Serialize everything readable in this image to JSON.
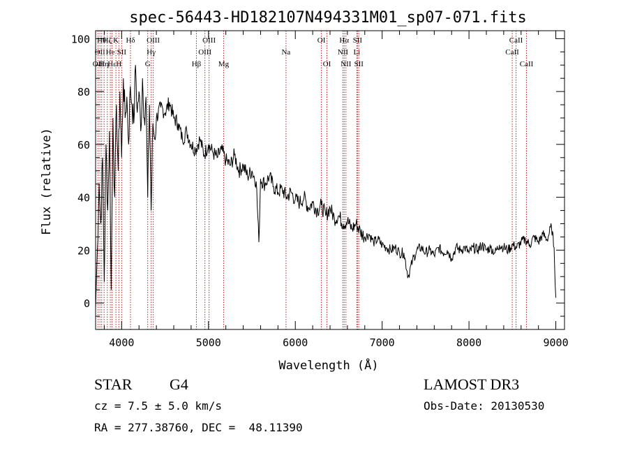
{
  "chart_data": {
    "type": "line",
    "title": "spec-56443-HD182107N494331M01_sp07-071.fits",
    "xlabel": "Wavelength (Å)",
    "ylabel": "Flux (relative)",
    "xlim": [
      3700,
      9100
    ],
    "ylim": [
      -10,
      103
    ],
    "xticks": [
      4000,
      5000,
      6000,
      7000,
      8000,
      9000
    ],
    "yticks": [
      0,
      20,
      40,
      60,
      80,
      100
    ],
    "xtick_labels": [
      "4000",
      "5000",
      "6000",
      "7000",
      "8000",
      "9000"
    ],
    "ytick_labels": [
      "0",
      "20",
      "40",
      "60",
      "80",
      "100"
    ],
    "grid": false,
    "series": [
      {
        "name": "flux",
        "x": [
          3700,
          3720,
          3740,
          3760,
          3780,
          3800,
          3820,
          3840,
          3860,
          3880,
          3900,
          3920,
          3940,
          3960,
          3980,
          4000,
          4020,
          4040,
          4060,
          4080,
          4100,
          4120,
          4140,
          4160,
          4180,
          4200,
          4220,
          4240,
          4260,
          4280,
          4300,
          4320,
          4340,
          4360,
          4380,
          4400,
          4450,
          4500,
          4550,
          4600,
          4650,
          4700,
          4750,
          4800,
          4850,
          4900,
          4950,
          5000,
          5050,
          5100,
          5150,
          5200,
          5250,
          5300,
          5350,
          5400,
          5450,
          5500,
          5550,
          5580,
          5600,
          5650,
          5700,
          5750,
          5800,
          5850,
          5900,
          5950,
          6000,
          6050,
          6100,
          6150,
          6200,
          6250,
          6300,
          6350,
          6400,
          6450,
          6500,
          6550,
          6600,
          6650,
          6700,
          6750,
          6800,
          6850,
          6900,
          6950,
          7000,
          7050,
          7100,
          7150,
          7200,
          7250,
          7300,
          7350,
          7400,
          7450,
          7500,
          7550,
          7600,
          7650,
          7700,
          7750,
          7800,
          7850,
          7900,
          7950,
          8000,
          8050,
          8100,
          8150,
          8200,
          8250,
          8300,
          8350,
          8400,
          8450,
          8500,
          8550,
          8600,
          8650,
          8700,
          8750,
          8800,
          8850,
          8900,
          8950,
          8980,
          9000
        ],
        "y": [
          -2,
          20,
          45,
          30,
          55,
          8,
          60,
          35,
          65,
          5,
          70,
          40,
          75,
          50,
          80,
          55,
          85,
          70,
          78,
          60,
          82,
          75,
          68,
          90,
          72,
          80,
          65,
          85,
          70,
          78,
          40,
          75,
          35,
          68,
          62,
          70,
          74,
          72,
          76,
          70,
          68,
          62,
          65,
          60,
          58,
          62,
          56,
          60,
          57,
          55,
          58,
          54,
          52,
          56,
          50,
          52,
          48,
          50,
          46,
          23,
          47,
          45,
          48,
          44,
          42,
          43,
          40,
          42,
          39,
          38,
          40,
          36,
          38,
          35,
          37,
          33,
          36,
          32,
          33,
          30,
          31,
          28,
          30,
          27,
          25,
          26,
          23,
          24,
          22,
          21,
          20,
          21,
          19,
          19,
          10,
          16,
          20,
          21,
          19,
          20,
          18,
          21,
          19,
          20,
          17,
          21,
          20,
          21,
          19,
          21,
          20,
          22,
          20,
          21,
          19,
          22,
          21,
          20,
          22,
          21,
          23,
          24,
          22,
          25,
          23,
          26,
          24,
          29,
          21,
          2
        ]
      }
    ],
    "lines": [
      {
        "wl": 3727,
        "label": "OII",
        "row": 3
      },
      {
        "wl": 3750,
        "label": "OII",
        "row": 2
      },
      {
        "wl": 3770,
        "label": "Hθ",
        "row": 1
      },
      {
        "wl": 3798,
        "label": "Hη",
        "row": 3
      },
      {
        "wl": 3835,
        "label": "Hζ",
        "row": 1
      },
      {
        "wl": 3869,
        "label": "He",
        "row": 2
      },
      {
        "wl": 3889,
        "label": "Hε",
        "row": 3
      },
      {
        "wl": 3934,
        "label": "K",
        "row": 1
      },
      {
        "wl": 3968,
        "label": "H",
        "row": 3
      },
      {
        "wl": 4000,
        "label": "SII",
        "row": 2
      },
      {
        "wl": 4102,
        "label": "Hδ",
        "row": 1
      },
      {
        "wl": 4300,
        "label": "G",
        "row": 3
      },
      {
        "wl": 4340,
        "label": "Hγ",
        "row": 2
      },
      {
        "wl": 4364,
        "label": "OIII",
        "row": 1
      },
      {
        "wl": 4861,
        "label": "Hβ",
        "row": 3
      },
      {
        "wl": 4959,
        "label": "OIII",
        "row": 2
      },
      {
        "wl": 5007,
        "label": "OIII",
        "row": 1
      },
      {
        "wl": 5175,
        "label": "Mg",
        "row": 3
      },
      {
        "wl": 5893,
        "label": "Na",
        "row": 2
      },
      {
        "wl": 6300,
        "label": "OI",
        "row": 1
      },
      {
        "wl": 6364,
        "label": "OI",
        "row": 3
      },
      {
        "wl": 6548,
        "label": "NII",
        "row": 2
      },
      {
        "wl": 6563,
        "label": "Hα",
        "row": 1
      },
      {
        "wl": 6583,
        "label": "NII",
        "row": 3
      },
      {
        "wl": 6708,
        "label": "Li",
        "row": 2
      },
      {
        "wl": 6716,
        "label": "SII",
        "row": 1
      },
      {
        "wl": 6731,
        "label": "SII",
        "row": 3
      },
      {
        "wl": 8498,
        "label": "CaII",
        "row": 2
      },
      {
        "wl": 8542,
        "label": "CaII",
        "row": 1
      },
      {
        "wl": 8662,
        "label": "CaII",
        "row": 3
      }
    ]
  },
  "info": {
    "object_type": "STAR",
    "subclass": "G4",
    "survey": "LAMOST DR3",
    "cz": "cz = 7.5 ± 5.0 km/s",
    "obs_date": "Obs-Date: 20130530",
    "coords": "RA = 277.38760, DEC =  48.11390"
  }
}
